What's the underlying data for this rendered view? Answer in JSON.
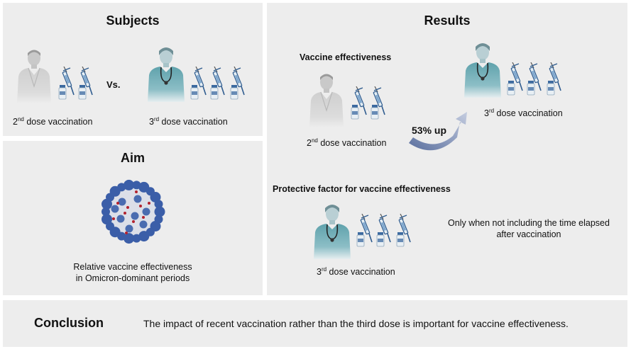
{
  "subjects": {
    "title": "Subjects",
    "vs": "Vs.",
    "left_caption": {
      "ordinal": "2",
      "suffix": "nd",
      "rest": " dose vaccination"
    },
    "right_caption": {
      "ordinal": "3",
      "suffix": "rd",
      "rest": " dose vaccination"
    }
  },
  "aim": {
    "title": "Aim",
    "caption_line1": "Relative vaccine effectiveness",
    "caption_line2": "in Omicron-dominant periods"
  },
  "results": {
    "title": "Results",
    "vaccine_effectiveness_label": "Vaccine effectiveness",
    "second_caption": {
      "ordinal": "2",
      "suffix": "nd",
      "rest": " dose vaccination"
    },
    "third_caption": {
      "ordinal": "3",
      "suffix": "rd",
      "rest": " dose vaccination"
    },
    "increase_label": "53% up",
    "protective_factor_label": "Protective factor for vaccine effectiveness",
    "protective_caption": {
      "ordinal": "3",
      "suffix": "rd",
      "rest": " dose vaccination"
    },
    "note_line1": "Only when not including the time elapsed",
    "note_line2": "after vaccination"
  },
  "conclusion": {
    "title": "Conclusion",
    "text": "The impact of recent vaccination rather than the third dose is important for vaccine effectiveness."
  },
  "colors": {
    "panel_bg": "#ededed",
    "coat_grey": "#d3d3d3",
    "coat_teal": "#5fa2ac",
    "syringe_blue": "#2f5c8f",
    "virus_blue": "#3b5ea8",
    "arrow": "#8a96b4"
  }
}
